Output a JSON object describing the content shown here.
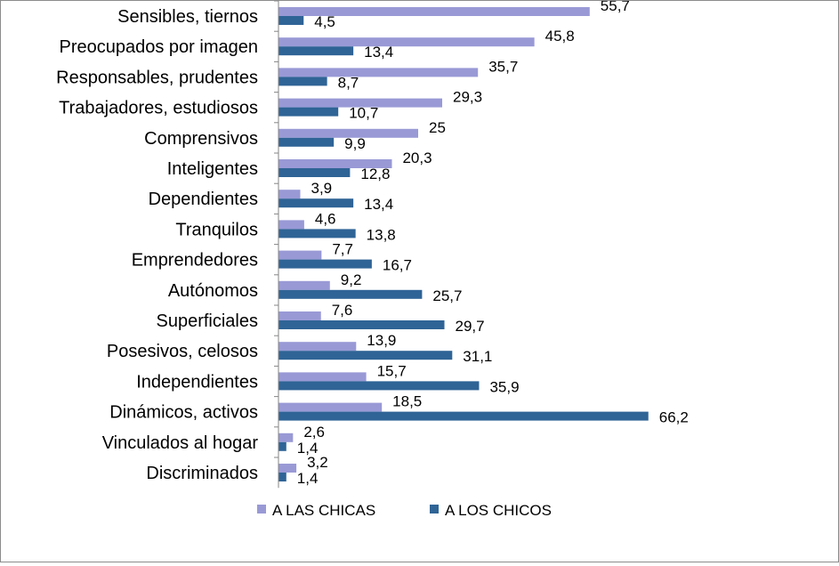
{
  "chart_data": {
    "type": "bar",
    "orientation": "horizontal",
    "categories": [
      "Sensibles, tiernos",
      "Preocupados por imagen",
      "Responsables, prudentes",
      "Trabajadores, estudiosos",
      "Comprensivos",
      "Inteligentes",
      "Dependientes",
      "Tranquilos",
      "Emprendedores",
      "Autónomos",
      "Superficiales",
      "Posesivos, celosos",
      "Independientes",
      "Dinámicos, activos",
      "Vinculados al hogar",
      "Discriminados"
    ],
    "series": [
      {
        "name": "A LAS CHICAS",
        "color": "#9999d6",
        "values": [
          55.7,
          45.8,
          35.7,
          29.3,
          25,
          20.3,
          3.9,
          4.6,
          7.7,
          9.2,
          7.6,
          13.9,
          15.7,
          18.5,
          2.6,
          3.2
        ],
        "labels": [
          "55,7",
          "45,8",
          "35,7",
          "29,3",
          "25",
          "20,3",
          "3,9",
          "4,6",
          "7,7",
          "9,2",
          "7,6",
          "13,9",
          "15,7",
          "18,5",
          "2,6",
          "3,2"
        ]
      },
      {
        "name": "A LOS CHICOS",
        "color": "#2f6496",
        "values": [
          4.5,
          13.4,
          8.7,
          10.7,
          9.9,
          12.8,
          13.4,
          13.8,
          16.7,
          25.7,
          29.7,
          31.1,
          35.9,
          66.2,
          1.4,
          1.4
        ],
        "labels": [
          "4,5",
          "13,4",
          "8,7",
          "10,7",
          "9,9",
          "12,8",
          "13,4",
          "13,8",
          "16,7",
          "25,7",
          "29,7",
          "31,1",
          "35,9",
          "66,2",
          "1,4",
          "1,4"
        ]
      }
    ],
    "xlim": [
      0,
      70
    ],
    "grid": false,
    "legend_position": "bottom"
  }
}
